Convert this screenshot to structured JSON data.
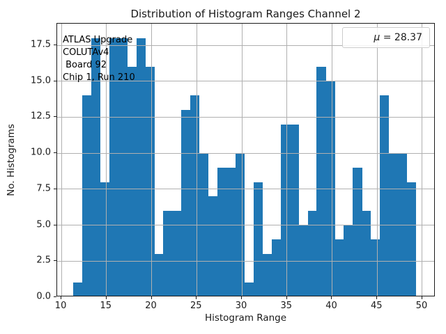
{
  "title": "Distribution of Histogram Ranges Channel 2",
  "xlabel": "Histogram Range",
  "ylabel": "No. Histograms",
  "legend": {
    "mu_symbol": "μ",
    "value_text": " = 28.37"
  },
  "annotation_lines": {
    "0": "ATLAS Upgrade",
    "1": "COLUTAv4",
    "2": " Board 92",
    "3": "Chip 1, Run 210"
  },
  "chart_data": {
    "type": "bar",
    "subtype": "histogram",
    "title": "Distribution of Histogram Ranges Channel 2",
    "xlabel": "Histogram Range",
    "ylabel": "No. Histograms",
    "legend_entries": [
      "μ = 28.37"
    ],
    "legend_position": "upper right",
    "mean": 28.37,
    "bin_start": 11.3,
    "bin_width": 1.0,
    "counts": [
      1,
      14,
      18,
      8,
      18,
      18,
      16,
      18,
      16,
      3,
      6,
      6,
      13,
      14,
      10,
      7,
      9,
      9,
      10,
      1,
      8,
      3,
      4,
      12,
      12,
      5,
      6,
      16,
      15,
      4,
      5,
      9,
      6,
      4,
      14,
      10,
      10,
      8
    ],
    "x_ticks": [
      10,
      15,
      20,
      25,
      30,
      35,
      40,
      45,
      50
    ],
    "x_tick_labels": [
      "10",
      "15",
      "20",
      "25",
      "30",
      "35",
      "40",
      "45",
      "50"
    ],
    "y_ticks": [
      0,
      2.5,
      5,
      7.5,
      10,
      12.5,
      15,
      17.5
    ],
    "y_tick_labels": [
      "0.0",
      "2.5",
      "5.0",
      "7.5",
      "10.0",
      "12.5",
      "15.0",
      "17.5"
    ],
    "xlim": [
      9.53,
      51.47
    ],
    "ylim": [
      0,
      19.0
    ],
    "grid": true,
    "grid_above_bars": true,
    "bar_color": "#1f77b4",
    "grid_color": "#b0b0b0",
    "annotation": "ATLAS Upgrade\nCOLUTAv4\n Board 92\nChip 1, Run 210"
  }
}
